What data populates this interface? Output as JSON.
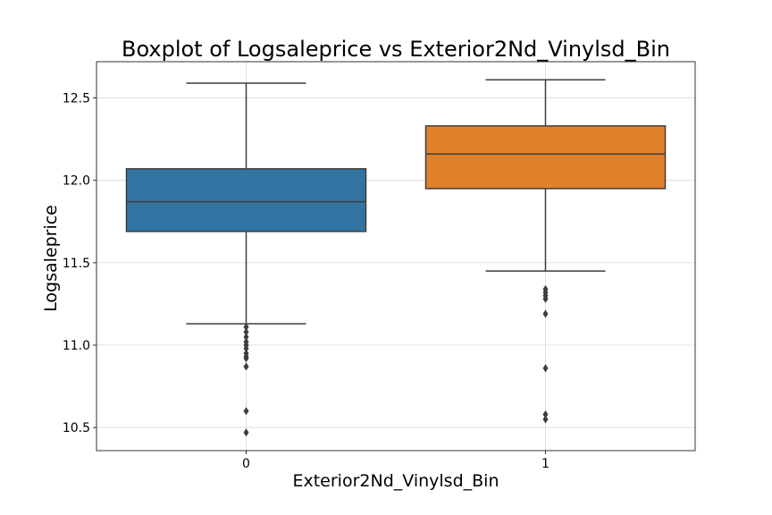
{
  "chart_data": {
    "type": "box",
    "title": "Boxplot of Logsaleprice vs Exterior2Nd_Vinylsd_Bin",
    "xlabel": "Exterior2Nd_Vinylsd_Bin",
    "ylabel": "Logsaleprice",
    "categories": [
      "0",
      "1"
    ],
    "ylim": [
      10.36,
      12.72
    ],
    "yticks": [
      10.5,
      11.0,
      11.5,
      12.0,
      12.5
    ],
    "ytick_labels": [
      "10.5",
      "11.0",
      "11.5",
      "12.0",
      "12.5"
    ],
    "grid": true,
    "boxes": [
      {
        "category": "0",
        "color": "#3274a1",
        "whisker_low": 11.13,
        "q1": 11.69,
        "median": 11.87,
        "q3": 12.07,
        "whisker_high": 12.59,
        "outliers": [
          11.11,
          11.08,
          11.05,
          11.02,
          11.0,
          10.98,
          10.95,
          10.93,
          10.92,
          10.87,
          10.6,
          10.47
        ]
      },
      {
        "category": "1",
        "color": "#e1812c",
        "whisker_low": 11.45,
        "q1": 11.95,
        "median": 12.16,
        "q3": 12.33,
        "whisker_high": 12.61,
        "outliers": [
          11.34,
          11.32,
          11.3,
          11.28,
          11.19,
          10.86,
          10.58,
          10.55
        ]
      }
    ]
  }
}
